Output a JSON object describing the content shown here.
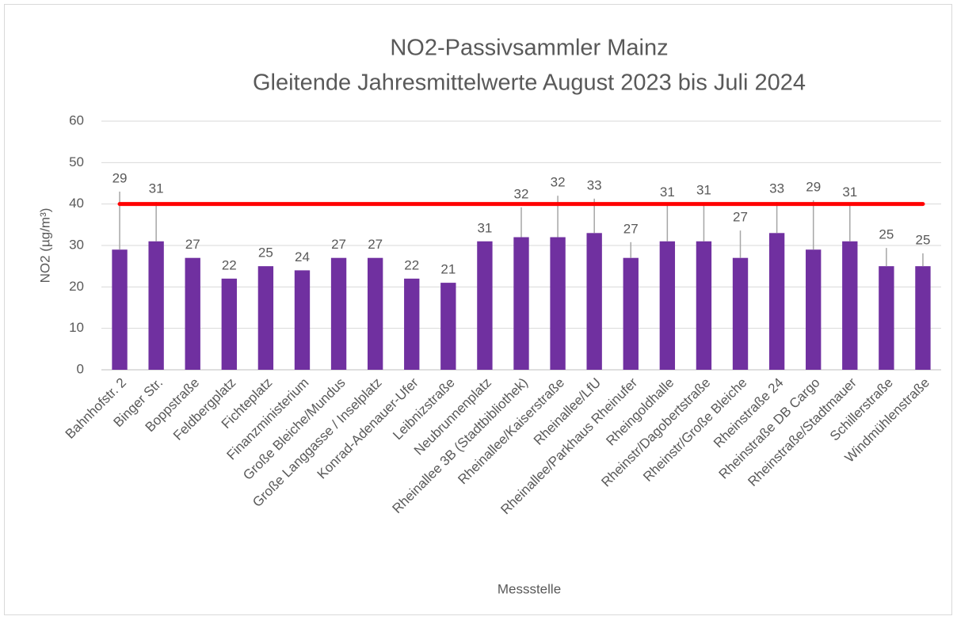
{
  "chart_data": {
    "type": "bar",
    "title": "NO2-Passivsammler Mainz",
    "subtitle": "Gleitende Jahresmittelwerte August 2023 bis Juli 2024",
    "x_label": "Messstelle",
    "y_label": "NO2 (µg/m³)",
    "categories": [
      "Bahnhofstr. 2",
      "Binger Str.",
      "Boppstraße",
      "Feldbergplatz",
      "Fichteplatz",
      "Finanzministerium",
      "Große Bleiche/Mundus",
      "Große Langgasse / Inselplatz",
      "Konrad-Adenauer-Ufer",
      "Leibnizstraße",
      "Neubrunnenplatz",
      "Rheinallee 3B (Stadtbibliothek)",
      "Rheinallee/Kaiserstraße",
      "Rheinallee/LfU",
      "Rheinallee/Parkhaus Rheinufer",
      "Rheingoldhalle",
      "Rheinstr/Dagobertstraße",
      "Rheinstr/Große Bleiche",
      "Rheinstraße 24",
      "Rheinstraße DB Cargo",
      "Rheinstraße/Stadtmauer",
      "Schillerstraße",
      "Windmühlenstraße"
    ],
    "values": [
      29,
      31,
      27,
      22,
      25,
      24,
      27,
      27,
      22,
      21,
      31,
      32,
      32,
      33,
      27,
      31,
      31,
      27,
      33,
      29,
      31,
      25,
      25
    ],
    "errors": [
      14,
      9.5,
      null,
      null,
      null,
      null,
      null,
      null,
      null,
      null,
      null,
      7.2,
      10,
      8.3,
      3.8,
      8.6,
      9.1,
      6.6,
      7.5,
      11.9,
      8.6,
      4.4,
      3.1
    ],
    "color": "#7030a0",
    "error_color": "#a6a6a6",
    "reference_line": {
      "value": 40,
      "color": "#ff0000"
    },
    "ylim": [
      0,
      60
    ],
    "yticks": [
      0,
      10,
      20,
      30,
      40,
      50,
      60
    ],
    "grid": true
  }
}
